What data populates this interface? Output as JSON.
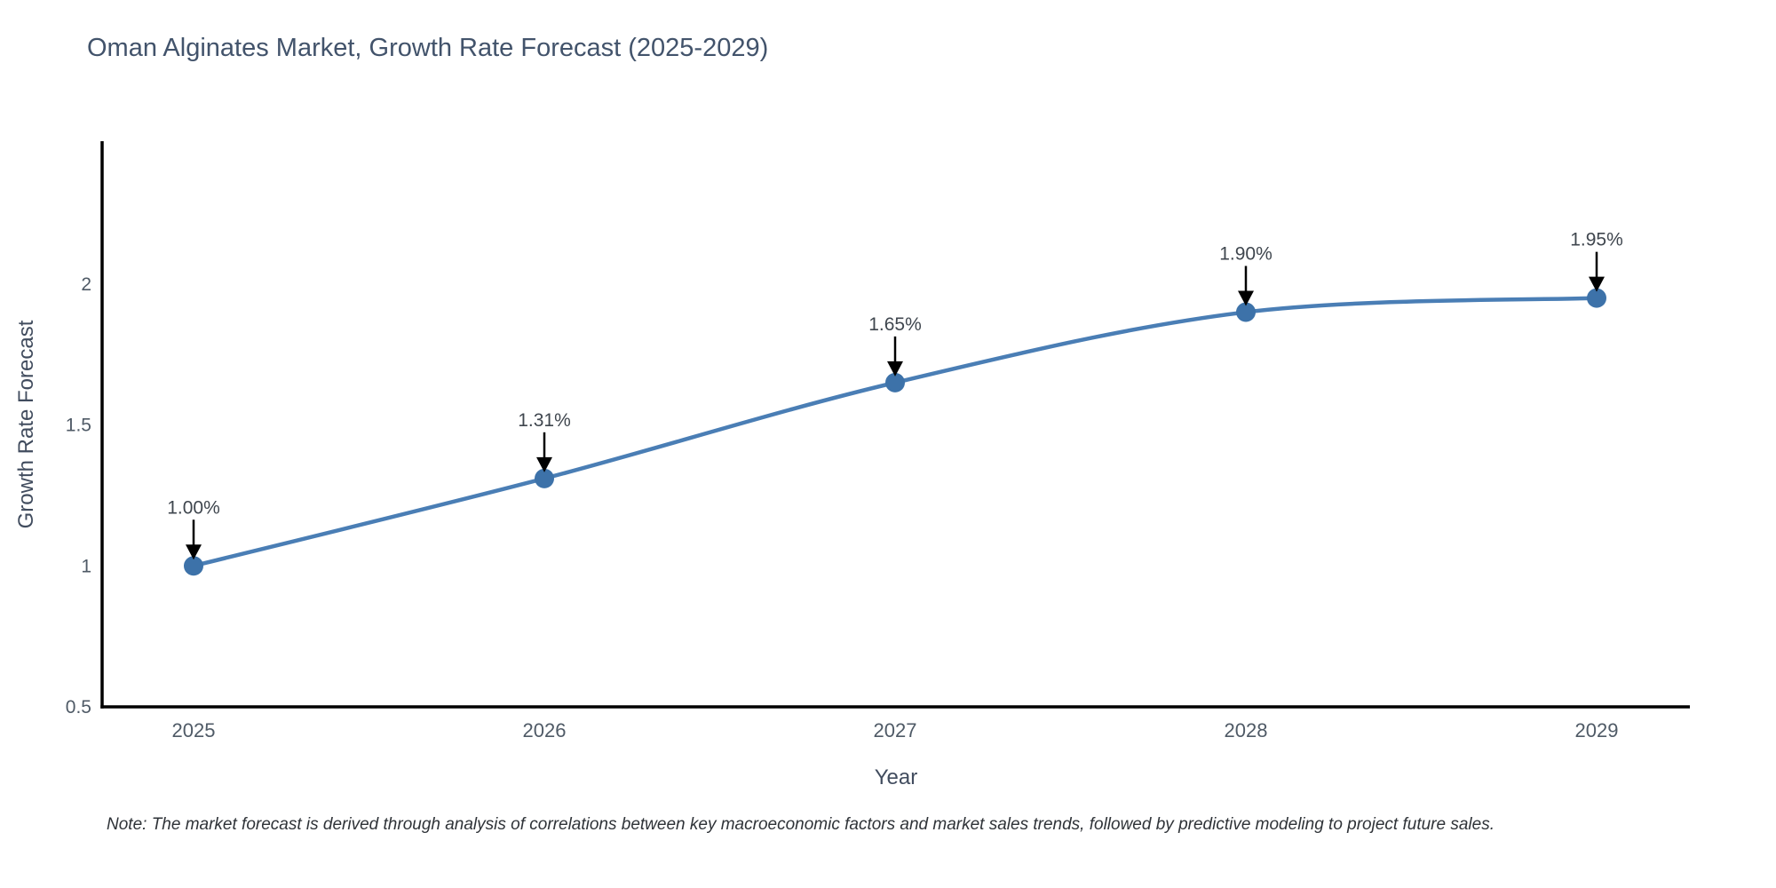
{
  "title": "Oman Alginates Market, Growth Rate Forecast (2025-2029)",
  "note": "Note: The market forecast is derived through analysis of correlations between key macroeconomic factors and market sales trends, followed by predictive modeling to project future sales.",
  "chart_data": {
    "type": "line",
    "title": "Oman Alginates Market, Growth Rate Forecast (2025-2029)",
    "xlabel": "Year",
    "ylabel": "Growth Rate Forecast",
    "x": [
      2025,
      2026,
      2027,
      2028,
      2029
    ],
    "values": [
      1.0,
      1.31,
      1.65,
      1.9,
      1.95
    ],
    "point_labels": [
      "1.00%",
      "1.31%",
      "1.65%",
      "1.90%",
      "1.95%"
    ],
    "xtick_labels": [
      "2025",
      "2026",
      "2027",
      "2028",
      "2029"
    ],
    "ytick_labels": [
      "0.5",
      "1",
      "1.5",
      "2"
    ],
    "yticks": [
      0.5,
      1,
      1.5,
      2
    ],
    "ylim": [
      0.5,
      2.5
    ],
    "grid": false,
    "legend": "none",
    "line_shape": "spline",
    "annotation_style": "value-label-with-down-arrow",
    "colors": {
      "line": "#4a7eb5",
      "marker": "#3d72a9",
      "axis": "#000000",
      "tick_label": "#4f5a66",
      "annotation_text": "#3f464e",
      "arrow": "#000000",
      "title": "#42536b",
      "axis_title": "#414c5e",
      "note": "#2f3338",
      "background": "#ffffff"
    }
  }
}
